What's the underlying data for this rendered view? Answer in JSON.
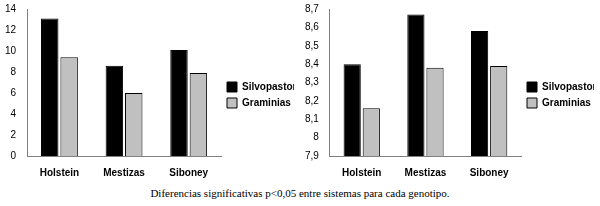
{
  "chart_data": [
    {
      "type": "bar",
      "categories": [
        "Holstein",
        "Mestizas",
        "Siboney"
      ],
      "series": [
        {
          "name": "Silvopastoreo",
          "color": "#000000",
          "values": [
            13.1,
            8.6,
            10.1
          ]
        },
        {
          "name": "Graminias",
          "color": "#c0c0c0",
          "values": [
            9.4,
            6.0,
            7.9
          ]
        }
      ],
      "ylim": [
        0,
        14
      ],
      "yticks": [
        0,
        2,
        4,
        6,
        8,
        10,
        12,
        14
      ],
      "grid": false,
      "legend": "right"
    },
    {
      "type": "bar",
      "categories": [
        "Holstein",
        "Mestizas",
        "Siboney"
      ],
      "series": [
        {
          "name": "Silvopastoreo",
          "color": "#000000",
          "values": [
            8.4,
            8.67,
            8.58
          ]
        },
        {
          "name": "Graminias",
          "color": "#c0c0c0",
          "values": [
            8.16,
            8.38,
            8.39
          ]
        }
      ],
      "ylim": [
        7.9,
        8.7
      ],
      "yticks": [
        {
          "value": 7.9,
          "label": "7,9"
        },
        8,
        {
          "value": 8.1,
          "label": "8,1"
        },
        {
          "value": 8.2,
          "label": "8,2"
        },
        {
          "value": 8.3,
          "label": "8,3"
        },
        {
          "value": 8.4,
          "label": "8,4"
        },
        {
          "value": 8.5,
          "label": "8,5"
        },
        {
          "value": 8.6,
          "label": "8,6"
        },
        {
          "value": 8.7,
          "label": "8,7"
        }
      ],
      "grid": false,
      "legend": "right"
    }
  ],
  "caption": "Diferencias significativas p<0,05 entre sistemas para cada genotipo."
}
